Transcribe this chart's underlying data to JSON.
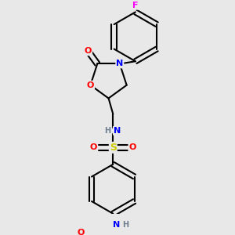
{
  "background_color": "#e8e8e8",
  "bond_color": "#000000",
  "atom_colors": {
    "N": "#0000ff",
    "O": "#ff0000",
    "S": "#cccc00",
    "F": "#ff00ff",
    "H": "#708090",
    "C": "#000000"
  },
  "figsize": [
    3.0,
    3.0
  ],
  "dpi": 100
}
